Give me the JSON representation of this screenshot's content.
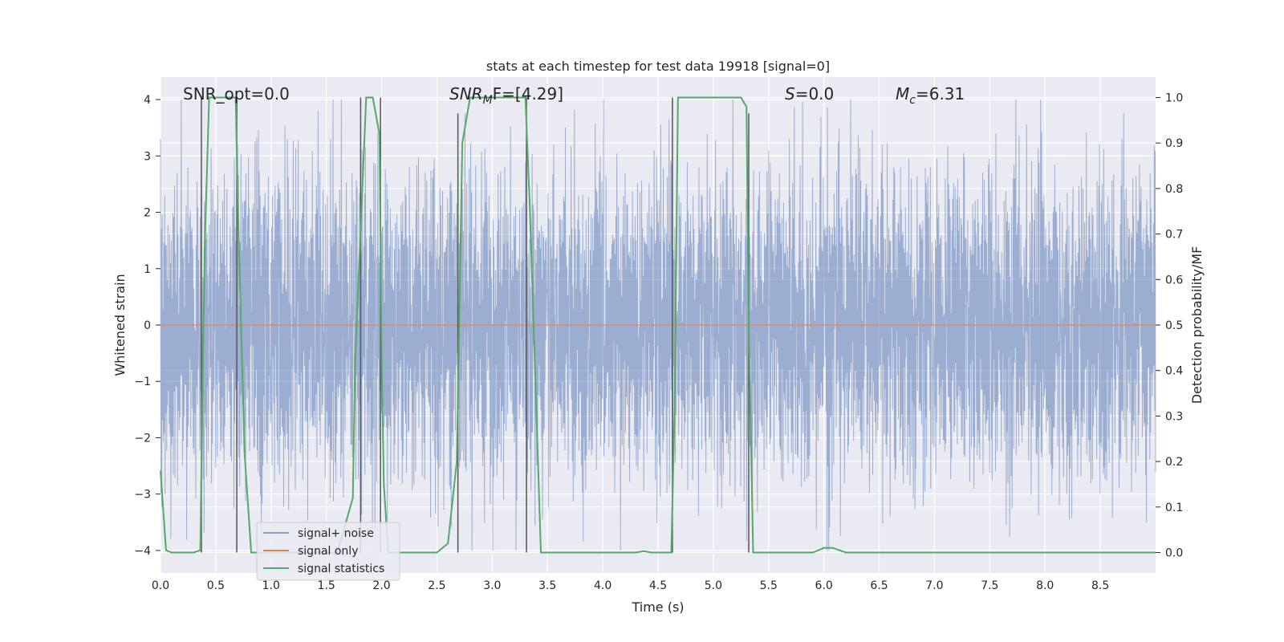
{
  "chart_data": {
    "type": "line",
    "title": "stats at each timestep for test data 19918 [signal=0]",
    "xlabel": "Time (s)",
    "ylabel": "Whitened strain",
    "y2label": "Detection probability/MF",
    "xlim": [
      0.0,
      9.0
    ],
    "ylim": [
      -4.4,
      4.4
    ],
    "y2lim": [
      -0.045,
      1.045
    ],
    "x_ticks": [
      0.0,
      0.5,
      1.0,
      1.5,
      2.0,
      2.5,
      3.0,
      3.5,
      4.0,
      4.5,
      5.0,
      5.5,
      6.0,
      6.5,
      7.0,
      7.5,
      8.0,
      8.5
    ],
    "x_tick_labels": [
      "0.0",
      "0.5",
      "1.0",
      "1.5",
      "2.0",
      "2.5",
      "3.0",
      "3.5",
      "4.0",
      "4.5",
      "5.0",
      "5.5",
      "6.0",
      "6.5",
      "7.0",
      "7.5",
      "8.0",
      "8.5"
    ],
    "y_ticks": [
      4,
      3,
      2,
      1,
      0,
      -1,
      -2,
      -3,
      -4
    ],
    "y_tick_labels": [
      "4",
      "3",
      "2",
      "1",
      "0",
      "−1",
      "−2",
      "−3",
      "−4"
    ],
    "y2_ticks": [
      1.0,
      0.9,
      0.8,
      0.7,
      0.6,
      0.5,
      0.4,
      0.3,
      0.2,
      0.1,
      0.0
    ],
    "y2_tick_labels": [
      "1.0",
      "0.9",
      "0.8",
      "0.7",
      "0.6",
      "0.5",
      "0.4",
      "0.3",
      "0.2",
      "0.1",
      "0.0"
    ],
    "grid": true,
    "legend_position": "lower-left",
    "annotations": {
      "snr_opt": "SNR_opt=0.0",
      "snr_mf_main": "SNR",
      "snr_mf_sub": "M",
      "snr_mf_rest": "F=[4.29]",
      "s_main": "S",
      "s_rest": "=0.0",
      "mc_main": "M",
      "mc_sub": "c",
      "mc_rest": "=6.31"
    },
    "series": [
      {
        "name": "signal+ noise",
        "color": "#4c72b0",
        "axis": "left",
        "kind": "noise",
        "x_range": [
          0.0,
          9.0
        ],
        "typical_amplitude": 1.6,
        "peak_amplitude": 4.0
      },
      {
        "name": "signal only",
        "color": "#dd8452",
        "axis": "left",
        "x": [
          0.0,
          9.0
        ],
        "y": [
          0.0,
          0.0
        ]
      },
      {
        "name": "signal statistics",
        "color": "#55a868",
        "axis": "right",
        "x": [
          0.0,
          0.05,
          0.1,
          0.2,
          0.3,
          0.36,
          0.38,
          0.4,
          0.44,
          0.6,
          0.68,
          0.7,
          0.76,
          0.82,
          1.0,
          1.2,
          1.6,
          1.74,
          1.76,
          1.86,
          1.92,
          1.98,
          2.0,
          2.02,
          2.06,
          2.2,
          2.5,
          2.6,
          2.68,
          2.73,
          2.8,
          3.0,
          3.2,
          3.3,
          3.34,
          3.44,
          3.6,
          4.0,
          4.3,
          4.37,
          4.44,
          4.62,
          4.65,
          4.68,
          5.0,
          5.25,
          5.3,
          5.32,
          5.36,
          5.5,
          5.9,
          6.0,
          6.08,
          6.2,
          7.0,
          8.0,
          9.0
        ],
        "y": [
          0.18,
          0.005,
          0.0,
          0.0,
          0.0,
          0.005,
          0.37,
          0.67,
          1.0,
          1.0,
          1.0,
          0.76,
          0.22,
          0.0,
          0.0,
          0.0,
          0.0,
          0.12,
          0.42,
          1.0,
          1.0,
          0.92,
          0.42,
          0.15,
          0.0,
          0.0,
          0.0,
          0.02,
          0.2,
          0.9,
          1.0,
          1.0,
          1.0,
          1.0,
          0.76,
          0.0,
          0.0,
          0.0,
          0.0,
          0.003,
          0.0,
          0.0,
          0.32,
          1.0,
          1.0,
          1.0,
          0.98,
          0.5,
          0.0,
          0.0,
          0.0,
          0.01,
          0.01,
          0.0,
          0.0,
          0.0,
          0.0
        ]
      }
    ],
    "vlines": [
      {
        "x": 0.37,
        "ymax": 1.0
      },
      {
        "x": 0.69,
        "ymax": 1.0
      },
      {
        "x": 1.81,
        "ymax": 1.0
      },
      {
        "x": 1.99,
        "ymax": 1.0
      },
      {
        "x": 2.69,
        "ymax": 0.965
      },
      {
        "x": 3.31,
        "ymax": 1.0
      },
      {
        "x": 4.63,
        "ymax": 1.0
      },
      {
        "x": 5.32,
        "ymax": 0.965
      }
    ]
  }
}
